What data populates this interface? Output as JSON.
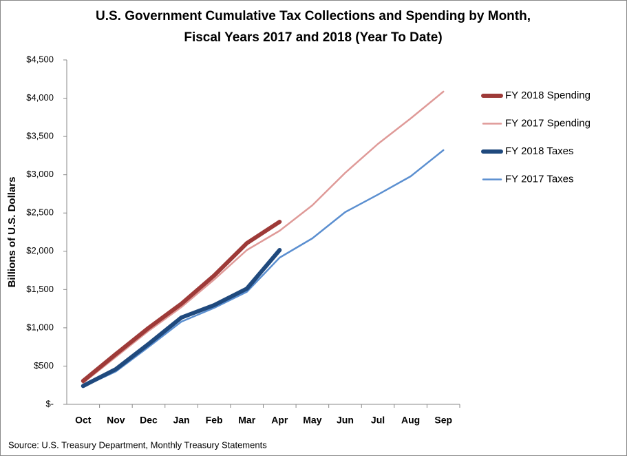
{
  "chart_data": {
    "type": "line",
    "title": "U.S. Government Cumulative Tax Collections and Spending by Month,",
    "subtitle": "Fiscal Years 2017 and 2018 (Year To Date)",
    "y_label": "Billions of U.S. Dollars",
    "source": "Source: U.S. Treasury Department, Monthly Treasury Statements",
    "categories": [
      "Oct",
      "Nov",
      "Dec",
      "Jan",
      "Feb",
      "Mar",
      "Apr",
      "May",
      "Jun",
      "Jul",
      "Aug",
      "Sep"
    ],
    "series": [
      {
        "name": "FY 2018 Spending",
        "color": "#9e3a38",
        "width": 6,
        "values": [
          306,
          657,
          999,
          1314,
          1683,
          2106,
          2385,
          null,
          null,
          null,
          null,
          null
        ]
      },
      {
        "name": "FY 2017 Spending",
        "color": "#df9a98",
        "width": 2.5,
        "values": [
          280,
          620,
          960,
          1270,
          1630,
          2016,
          2268,
          2601,
          3024,
          3402,
          3735,
          4086
        ]
      },
      {
        "name": "FY 2018 Taxes",
        "color": "#1f497d",
        "width": 6,
        "values": [
          240,
          460,
          790,
          1134,
          1296,
          1512,
          2016,
          null,
          null,
          null,
          null,
          null
        ]
      },
      {
        "name": "FY 2017 Taxes",
        "color": "#5b8fd0",
        "width": 2.5,
        "values": [
          230,
          430,
          750,
          1080,
          1260,
          1470,
          1917,
          2169,
          2511,
          2740,
          2979,
          3321
        ]
      }
    ],
    "ylim": [
      0,
      4500
    ],
    "yticks": [
      {
        "value": 0,
        "label": "$-"
      },
      {
        "value": 500,
        "label": "$500"
      },
      {
        "value": 1000,
        "label": "$1,000"
      },
      {
        "value": 1500,
        "label": "$1,500"
      },
      {
        "value": 2000,
        "label": "$2,000"
      },
      {
        "value": 2500,
        "label": "$2,500"
      },
      {
        "value": 3000,
        "label": "$3,000"
      },
      {
        "value": 3500,
        "label": "$3,500"
      },
      {
        "value": 4000,
        "label": "$4,000"
      },
      {
        "value": 4500,
        "label": "$4,500"
      }
    ],
    "grid": false
  }
}
